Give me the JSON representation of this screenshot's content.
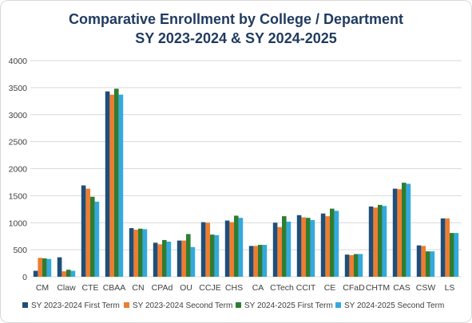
{
  "chart_data": {
    "type": "bar",
    "title": "Comparative Enrollment by College / Department",
    "subtitle": "SY 2023-2024 & SY 2024-2025",
    "xlabel": "",
    "ylabel": "",
    "ylim": [
      0,
      4000
    ],
    "yticks": [
      0,
      500,
      1000,
      1500,
      2000,
      2500,
      3000,
      3500,
      4000
    ],
    "grid": true,
    "legend_position": "bottom",
    "categories": [
      "CM",
      "Claw",
      "CTE",
      "CBAA",
      "CN",
      "CPAd",
      "OU",
      "CCJE",
      "CHS",
      "CA",
      "CTech",
      "CCIT",
      "CE",
      "CFaD",
      "CHTM",
      "CAS",
      "CSW",
      "LS"
    ],
    "series": [
      {
        "name": "SY 2023-2024 First Term",
        "color": "#1f4e79",
        "values": [
          110,
          360,
          1690,
          3430,
          900,
          630,
          670,
          1010,
          1040,
          570,
          1000,
          1140,
          1170,
          410,
          1300,
          1630,
          580,
          1080
        ]
      },
      {
        "name": "SY 2023-2024 Second Term",
        "color": "#ed7d31",
        "values": [
          350,
          100,
          1630,
          3370,
          870,
          600,
          670,
          1000,
          1010,
          570,
          920,
          1100,
          1120,
          400,
          1280,
          1620,
          570,
          1080
        ]
      },
      {
        "name": "SY 2024-2025 First Term",
        "color": "#2e7d32",
        "values": [
          340,
          130,
          1480,
          3480,
          890,
          680,
          790,
          780,
          1130,
          590,
          1120,
          1090,
          1260,
          420,
          1330,
          1740,
          470,
          810
        ]
      },
      {
        "name": "SY 2024-2025 Second Term",
        "color": "#33a9df",
        "values": [
          330,
          110,
          1390,
          3370,
          880,
          650,
          550,
          770,
          1090,
          590,
          1020,
          1050,
          1220,
          420,
          1310,
          1720,
          470,
          810
        ]
      }
    ]
  }
}
